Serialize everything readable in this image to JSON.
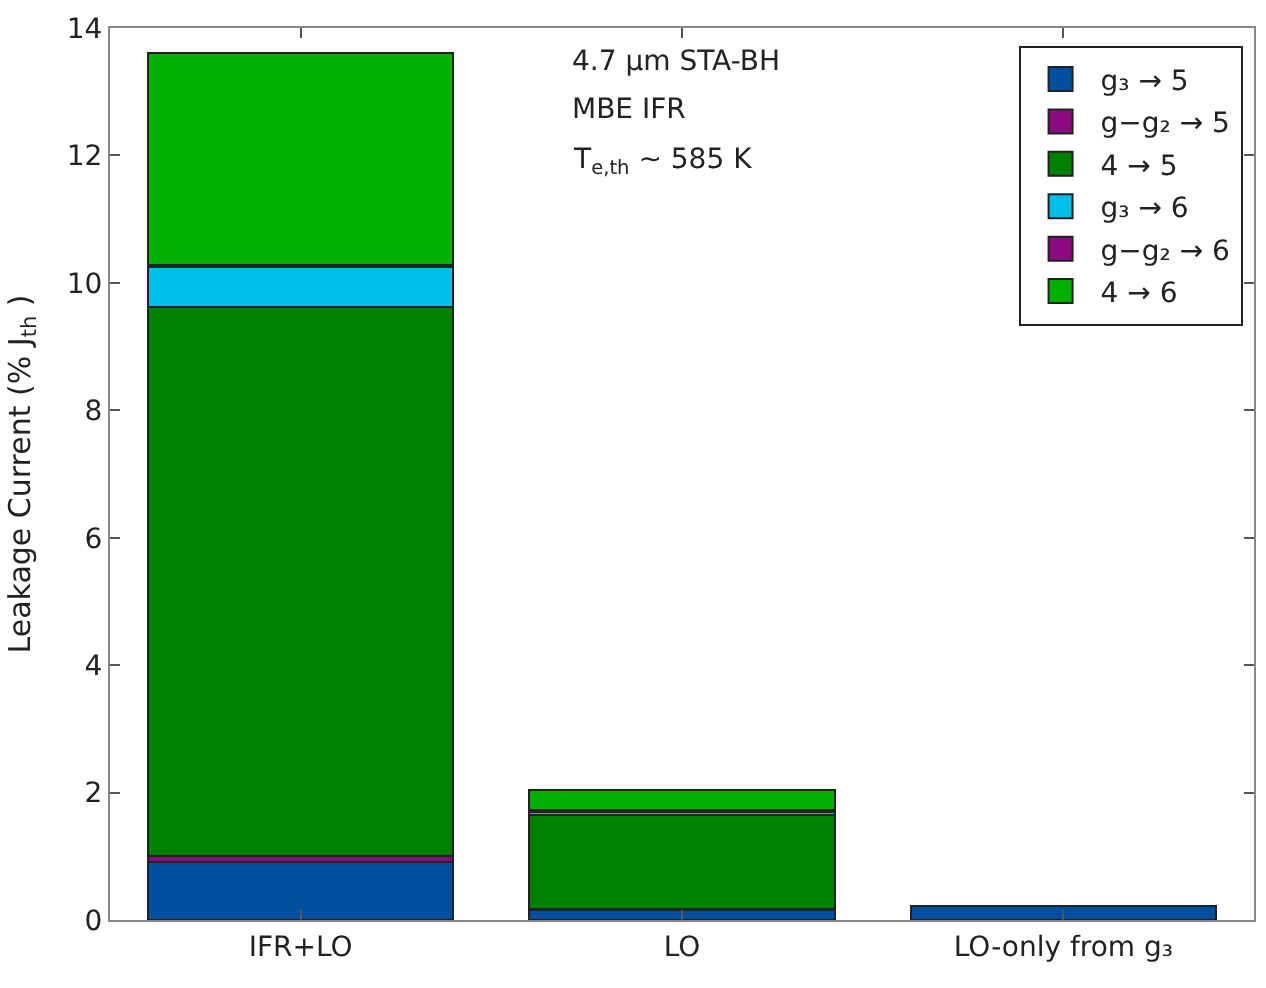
{
  "chart_data": {
    "type": "bar",
    "stacked": true,
    "ylabel": "Leakage Current (% J$_{th}$ )",
    "categories": [
      "IFR+LO",
      "LO",
      "LO-only from g₃"
    ],
    "series": [
      {
        "name": "g₃ → 5",
        "color": "#0050a0",
        "values": [
          0.91,
          0.15,
          0.22
        ]
      },
      {
        "name": "g−g₂ → 5",
        "color": "#8b0a82",
        "values": [
          0.09,
          0.03,
          null
        ]
      },
      {
        "name": "4 → 5",
        "color": "#008000",
        "values": [
          8.62,
          1.47,
          null
        ]
      },
      {
        "name": "g₃ → 6",
        "color": "#00c0e8",
        "values": [
          0.63,
          0.05,
          null
        ]
      },
      {
        "name": "g−g₂ → 6",
        "color": "#8b0a82",
        "values": [
          0.03,
          0.02,
          null
        ]
      },
      {
        "name": "4 → 6",
        "color": "#00b000",
        "values": [
          3.32,
          0.32,
          null
        ]
      }
    ],
    "ylim": [
      0,
      14
    ],
    "yticks": [
      0,
      2,
      4,
      6,
      8,
      10,
      12,
      14
    ],
    "grid": false,
    "legend": "top right",
    "annotations": [
      "4.7 μm STA-BH",
      "MBE IFR",
      "T$_{e,th}$ ~ 585 K"
    ]
  }
}
